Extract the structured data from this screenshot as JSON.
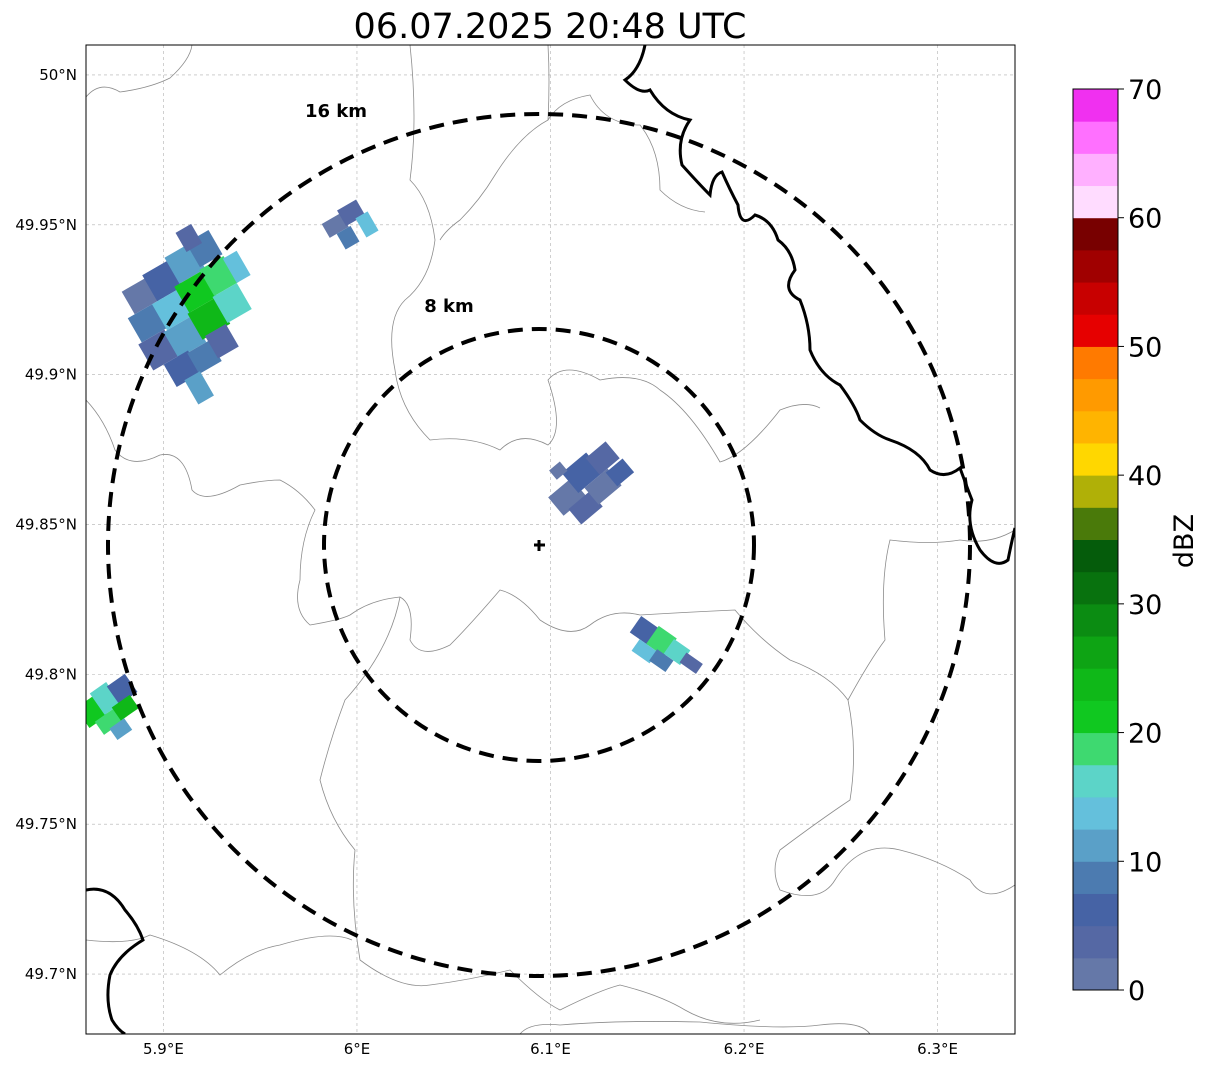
{
  "title": "06.07.2025 20:48 UTC",
  "map": {
    "lat_ticks": [
      "50°N",
      "49.95°N",
      "49.9°N",
      "49.85°N",
      "49.8°N",
      "49.75°N",
      "49.7°N"
    ],
    "lon_ticks": [
      "5.9°E",
      "6°E",
      "6.1°E",
      "6.2°E",
      "6.3°E"
    ],
    "lat_range": [
      49.68,
      50.01
    ],
    "lon_range": [
      5.86,
      6.34
    ],
    "gridlines": true,
    "radar_center": {
      "lon": 6.095,
      "lat": 49.843
    },
    "rings": [
      {
        "label": "8 km",
        "radius_km": 8
      },
      {
        "label": "16 km",
        "radius_km": 16
      }
    ]
  },
  "colorbar": {
    "label": "dBZ",
    "ticks": [
      "0",
      "10",
      "20",
      "30",
      "40",
      "50",
      "60",
      "70"
    ],
    "min": 0,
    "max": 70,
    "step": 2.5,
    "colors": [
      "#6578a8",
      "#5568a4",
      "#4663a5",
      "#4c7bb0",
      "#5aa0c8",
      "#64c0dc",
      "#5cd4c8",
      "#3ed970",
      "#10c820",
      "#0fb818",
      "#0ea414",
      "#0b8c12",
      "#08720e",
      "#055c0b",
      "#4a7a0a",
      "#b0b007",
      "#ffd700",
      "#ffb400",
      "#ff9a00",
      "#ff7a00",
      "#e60000",
      "#c80000",
      "#a00000",
      "#780000",
      "#ffdcff",
      "#ffb0ff",
      "#ff70ff",
      "#f030f0"
    ]
  },
  "precip_cells": [
    {
      "name": "nw-cluster",
      "dbz_max": 22
    },
    {
      "name": "north-cell",
      "dbz_max": 12
    },
    {
      "name": "center-cell",
      "dbz_max": 8
    },
    {
      "name": "se-cell",
      "dbz_max": 18
    },
    {
      "name": "west-edge-cell",
      "dbz_max": 22
    }
  ]
}
